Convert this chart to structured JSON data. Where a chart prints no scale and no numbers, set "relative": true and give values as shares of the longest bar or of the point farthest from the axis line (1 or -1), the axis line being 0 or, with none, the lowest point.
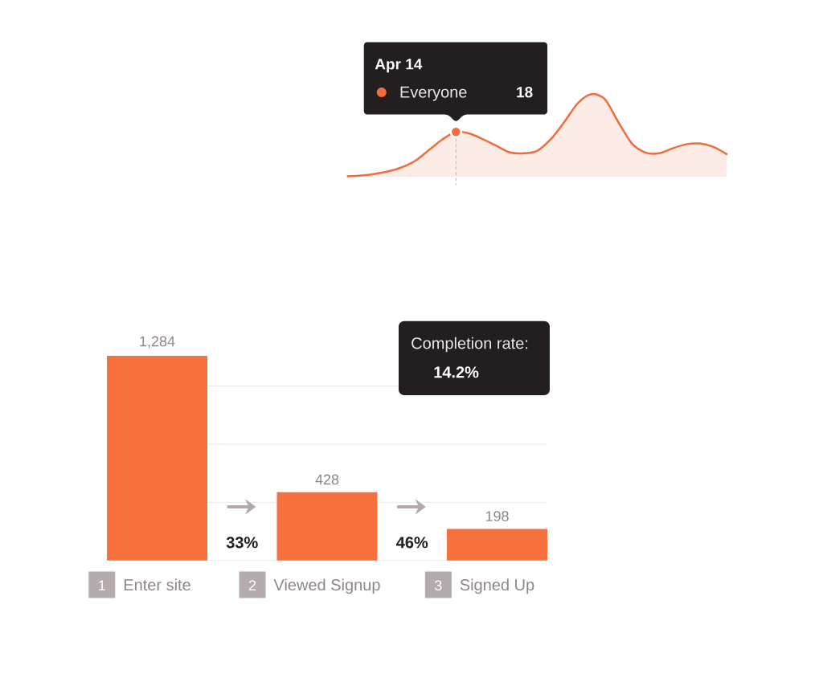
{
  "chart_data": [
    {
      "type": "area",
      "relative": true,
      "tick_labels": false,
      "categories": [
        null,
        null,
        null,
        null,
        null,
        null,
        null,
        null,
        null,
        null,
        null,
        null,
        null,
        null,
        null,
        null,
        null,
        null,
        null,
        null,
        null,
        null,
        null,
        null,
        null,
        null,
        null,
        null,
        null
      ],
      "series": [
        {
          "name": "Everyone",
          "color": "#f06c3c",
          "values": [
            0,
            0.01,
            0.03,
            0.06,
            0.11,
            0.19,
            0.32,
            0.45,
            0.54,
            0.52,
            0.45,
            0.37,
            0.29,
            0.28,
            0.31,
            0.45,
            0.66,
            0.89,
            1,
            0.94,
            0.66,
            0.4,
            0.29,
            0.28,
            0.34,
            0.39,
            0.4,
            0.36,
            0.27
          ]
        }
      ],
      "annotations": [
        "Apr 14",
        "18"
      ]
    },
    {
      "type": "bar",
      "tick_labels": "x",
      "grid": "y",
      "yticks": [
        {
          "value": 0,
          "label": null
        },
        {
          "value": 365,
          "label": null
        },
        {
          "value": 730,
          "label": null
        },
        {
          "value": 1095,
          "label": null
        }
      ],
      "categories": [
        "Enter site",
        "Viewed Signup",
        "Signed Up"
      ],
      "values": [
        1284,
        428,
        198
      ],
      "value_labels": [
        "1,284",
        "428",
        "198"
      ],
      "color": "#f6713d",
      "annotations": [
        "Completion rate:",
        "14.2%",
        "33%",
        "46%",
        "1",
        "2",
        "3"
      ]
    }
  ]
}
